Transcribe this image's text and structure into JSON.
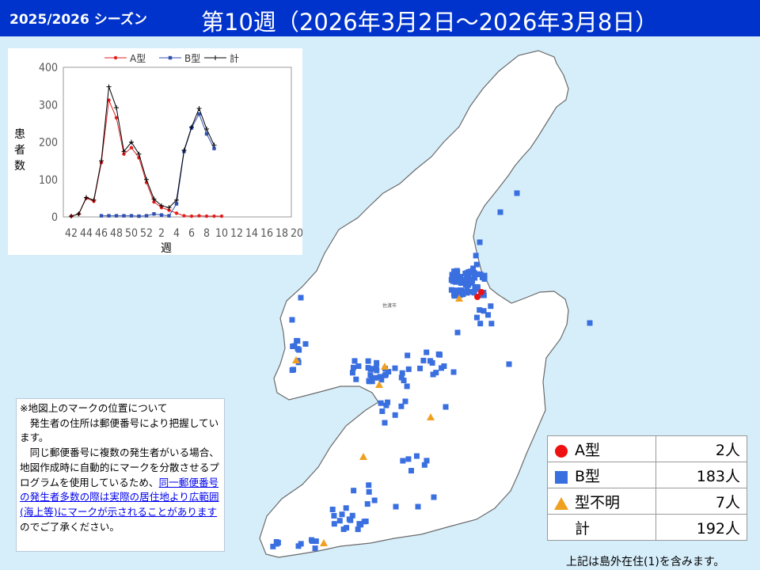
{
  "header": {
    "season": "2025/2026 シーズン",
    "week": "第10週（2026年3月2日～2026年3月8日）"
  },
  "map": {
    "city_label": "佐渡市"
  },
  "chart_data": {
    "type": "line",
    "xlabel": "週",
    "ylabel": "患者数",
    "ylim": [
      0,
      400
    ],
    "yticks": [
      0,
      100,
      200,
      300,
      400
    ],
    "x_ticks": [
      "42",
      "44",
      "46",
      "48",
      "50",
      "52",
      "2",
      "4",
      "6",
      "8",
      "10",
      "12",
      "14",
      "16",
      "18",
      "20"
    ],
    "x": [
      "42",
      "43",
      "44",
      "45",
      "46",
      "47",
      "48",
      "49",
      "50",
      "51",
      "52",
      "1",
      "2",
      "3",
      "4",
      "5",
      "6",
      "7",
      "8",
      "9",
      "10"
    ],
    "series": [
      {
        "name": "A型",
        "color": "#e02020",
        "marker": "circle",
        "values": [
          2,
          8,
          50,
          42,
          145,
          312,
          265,
          168,
          185,
          158,
          92,
          40,
          25,
          18,
          10,
          3,
          2,
          3,
          2,
          2,
          2
        ]
      },
      {
        "name": "B型",
        "color": "#3050b0",
        "marker": "square",
        "values": [
          null,
          null,
          null,
          null,
          3,
          3,
          3,
          3,
          3,
          2,
          3,
          8,
          5,
          3,
          35,
          175,
          238,
          275,
          222,
          183,
          null
        ]
      },
      {
        "name": "計",
        "color": "#000000",
        "marker": "plus",
        "values": [
          2,
          8,
          52,
          45,
          150,
          348,
          292,
          175,
          200,
          168,
          100,
          48,
          30,
          25,
          45,
          178,
          240,
          290,
          235,
          192,
          null
        ]
      }
    ]
  },
  "note": {
    "title": "※地図上のマークの位置について",
    "p1": "　発生者の住所は郵便番号により把握しています。",
    "p2": "　同じ郵便番号に複数の発生者がいる場合、地図作成時に自動的にマークを分散させるプログラムを使用しているため、",
    "link": "同一郵便番号の発生者多数の際は実際の居住地より広範囲(海上等)にマークが示されることがあります",
    "tail": "のでご了承ください。"
  },
  "legend": [
    {
      "label": "A型",
      "count": "2人",
      "symbol": "red-circle",
      "color": "#ee1111"
    },
    {
      "label": "B型",
      "count": "183人",
      "symbol": "blue-square",
      "color": "#3a6fe0"
    },
    {
      "label": "型不明",
      "count": "7人",
      "symbol": "orange-triangle",
      "color": "#f0a020"
    },
    {
      "label": "計",
      "count": "192人",
      "symbol": "none"
    }
  ],
  "footnote": "上記は島外在住(1)を含みます。"
}
